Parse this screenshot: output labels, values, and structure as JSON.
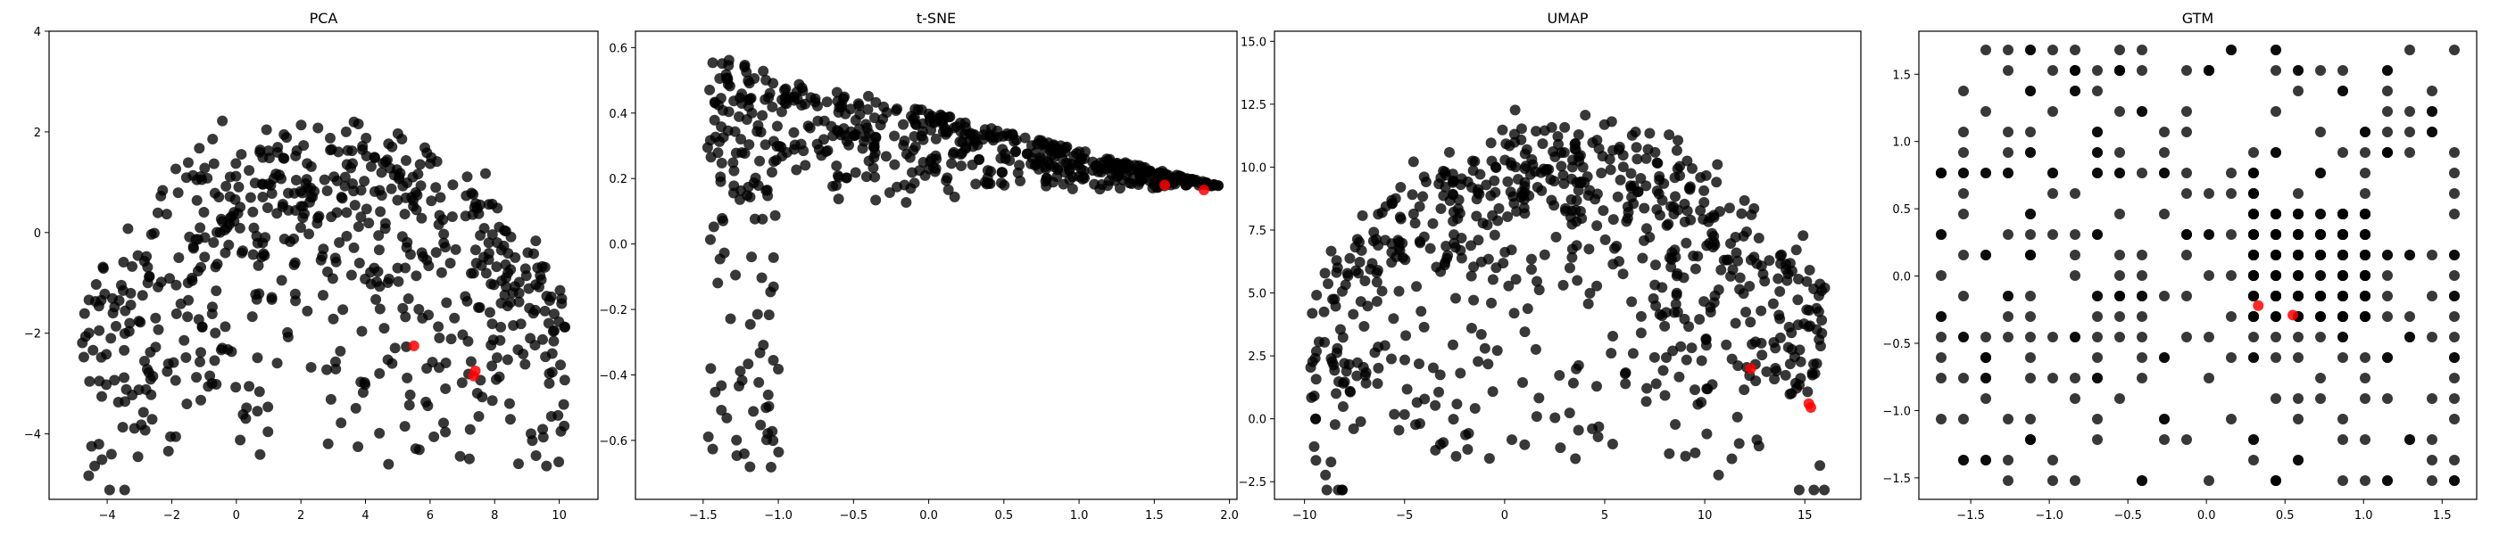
{
  "chart_data": [
    {
      "type": "scatter",
      "title": "PCA",
      "xlim": [
        -5.8,
        11.2
      ],
      "ylim": [
        -5.3,
        4.0
      ],
      "xticks": [
        -4,
        -2,
        0,
        2,
        4,
        6,
        8,
        10
      ],
      "yticks": [
        -4,
        -2,
        0,
        2,
        4
      ],
      "point_color": "#000000",
      "highlight_color": "#ff0000",
      "point_shape": "arch",
      "cloud": {
        "n": 620,
        "seed": 11
      },
      "highlights": [
        [
          5.5,
          -2.25
        ],
        [
          7.4,
          -2.75
        ],
        [
          7.35,
          -2.85
        ]
      ]
    },
    {
      "type": "scatter",
      "title": "t-SNE",
      "xlim": [
        -1.95,
        2.05
      ],
      "ylim": [
        -0.78,
        0.65
      ],
      "xticks": [
        -1.5,
        -1.0,
        -0.5,
        0.0,
        0.5,
        1.0,
        1.5,
        2.0
      ],
      "xtick_labels": [
        "−1.5",
        "−1.0",
        "−0.5",
        "0.0",
        "0.5",
        "1.0",
        "1.5",
        "2.0"
      ],
      "yticks": [
        -0.6,
        -0.4,
        -0.2,
        0.0,
        0.2,
        0.4,
        0.6
      ],
      "ytick_labels": [
        "−0.6",
        "−0.4",
        "−0.2",
        "0.0",
        "0.2",
        "0.4",
        "0.6"
      ],
      "point_color": "#000000",
      "highlight_color": "#ff0000",
      "point_shape": "wedge",
      "cloud": {
        "n": 600,
        "seed": 23
      },
      "highlights": [
        [
          1.57,
          0.18
        ],
        [
          1.83,
          0.165
        ]
      ]
    },
    {
      "type": "scatter",
      "title": "UMAP",
      "xlim": [
        -11.5,
        17.8
      ],
      "ylim": [
        -3.2,
        15.4
      ],
      "xticks": [
        -10,
        -5,
        0,
        5,
        10,
        15
      ],
      "xtick_labels": [
        "−10",
        "−5",
        "0",
        "5",
        "10",
        "15"
      ],
      "yticks": [
        -2.5,
        0.0,
        2.5,
        5.0,
        7.5,
        10.0,
        12.5,
        15.0
      ],
      "ytick_labels": [
        "−2.5",
        "0.0",
        "2.5",
        "5.0",
        "7.5",
        "10.0",
        "12.5",
        "15.0"
      ],
      "point_color": "#000000",
      "highlight_color": "#ff0000",
      "point_shape": "arch",
      "cloud": {
        "n": 680,
        "seed": 37
      },
      "highlights": [
        [
          12.3,
          2.0
        ],
        [
          15.2,
          0.6
        ],
        [
          15.3,
          0.45
        ]
      ]
    },
    {
      "type": "scatter",
      "title": "GTM",
      "xlim": [
        -1.83,
        1.72
      ],
      "ylim": [
        -1.66,
        1.82
      ],
      "xticks": [
        -1.5,
        -1.0,
        -0.5,
        0.0,
        0.5,
        1.0,
        1.5
      ],
      "xtick_labels": [
        "−1.5",
        "−1.0",
        "−0.5",
        "0.0",
        "0.5",
        "1.0",
        "1.5"
      ],
      "yticks": [
        -1.5,
        -1.0,
        -0.5,
        0.0,
        0.5,
        1.0,
        1.5
      ],
      "ytick_labels": [
        "−1.5",
        "−1.0",
        "−0.5",
        "0.0",
        "0.5",
        "1.0",
        "1.5"
      ],
      "point_color": "#000000",
      "highlight_color": "#ff0000",
      "point_shape": "grid",
      "cloud": {
        "n": 560,
        "seed": 53
      },
      "highlights": [
        [
          0.33,
          -0.22
        ],
        [
          0.55,
          -0.29
        ]
      ]
    }
  ]
}
